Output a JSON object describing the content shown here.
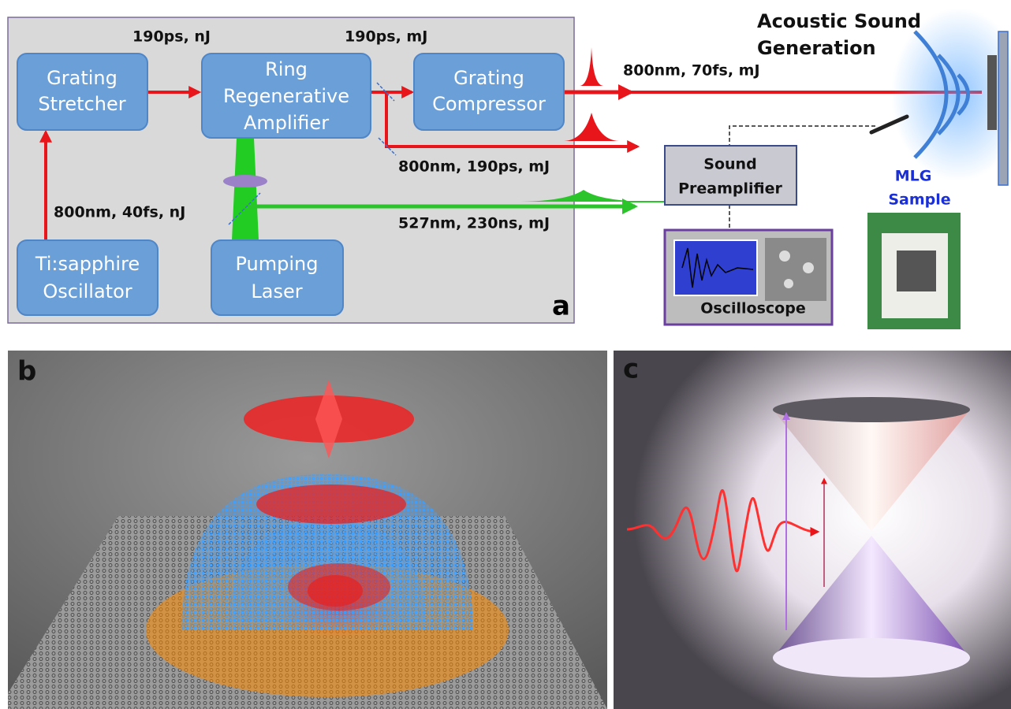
{
  "panel_a": {
    "label": "a",
    "boxes": [
      {
        "lines": [
          "Grating",
          "Stretcher"
        ]
      },
      {
        "lines": [
          "Ring",
          "Regenerative",
          "Amplifier"
        ]
      },
      {
        "lines": [
          "Grating",
          "Compressor"
        ]
      },
      {
        "lines": [
          "Ti:sapphire",
          "Oscillator"
        ]
      },
      {
        "lines": [
          "Pumping",
          "Laser"
        ]
      }
    ],
    "beam_labels": [
      "190ps, nJ",
      "190ps, mJ",
      "800nm, 70fs, mJ",
      "800nm, 190ps, mJ",
      "527nm, 230ns, mJ",
      "800nm, 40fs, nJ"
    ],
    "acoustic_title": [
      "Acoustic Sound",
      "Generation"
    ],
    "preamplifier": [
      "Sound",
      "Preamplifier"
    ],
    "oscilloscope": "Oscilloscope",
    "sample": [
      "MLG",
      "Sample"
    ]
  },
  "panel_b": {
    "label": "b"
  },
  "panel_c": {
    "label": "c"
  }
}
